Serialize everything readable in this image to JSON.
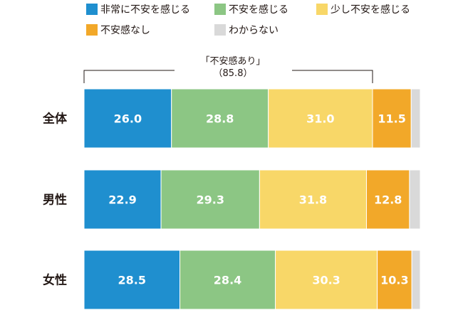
{
  "chart_data": {
    "type": "bar",
    "orientation": "horizontal",
    "stacked": true,
    "categories": [
      "全体",
      "男性",
      "女性"
    ],
    "series": [
      {
        "name": "非常に不安を感じる",
        "color": "#1f8fcf",
        "label_color": "#ffffff",
        "values": [
          26.0,
          22.9,
          28.5
        ]
      },
      {
        "name": "不安を感じる",
        "color": "#8cc684",
        "label_color": "#ffffff",
        "values": [
          28.8,
          29.3,
          28.4
        ]
      },
      {
        "name": "少し不安を感じる",
        "color": "#f8d768",
        "label_color": "#ffffff",
        "values": [
          31.0,
          31.8,
          30.3
        ]
      },
      {
        "name": "不安感なし",
        "color": "#f2a829",
        "label_color": "#ffffff",
        "values": [
          11.5,
          12.8,
          10.3
        ]
      },
      {
        "name": "わからない",
        "color": "#d9d9d9",
        "label_color": "#ffffff",
        "values": [
          2.7,
          3.2,
          2.5
        ]
      }
    ],
    "show_value_labels_for_series": [
      0,
      1,
      2,
      3
    ],
    "bracket": {
      "title": "「不安感あり」",
      "value_text": "（85.8）"
    },
    "legend_placement": "top",
    "xlim": [
      0,
      100
    ],
    "grid": false
  }
}
